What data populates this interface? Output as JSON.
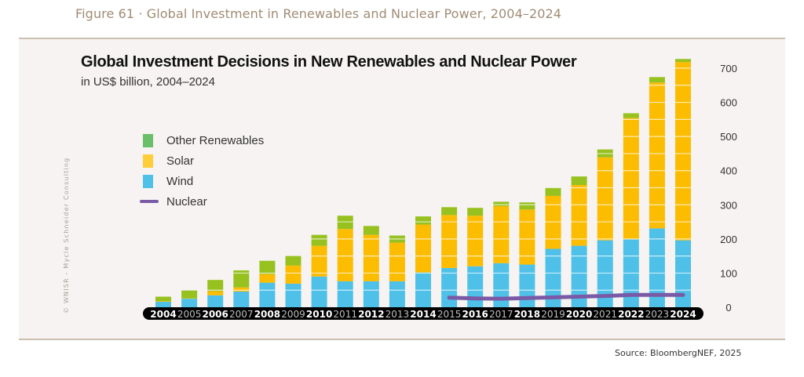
{
  "figure_caption": "Figure 61 · Global Investment in Renewables and Nuclear Power, 2004–2024",
  "copyright": "© WNISR - Mycle Schneider Consulting",
  "source": "Source: BloombergNEF, 2025",
  "colors": {
    "wind": "#4fc1e8",
    "solar": "#fcbc00",
    "other": "#97c11f",
    "other_legend": "#6abf69",
    "solar_legend": "#ffcd3a",
    "nuclear": "#7a5aa6",
    "axis_band": "#000000"
  },
  "chart_data": {
    "type": "bar",
    "stacked": true,
    "title": "Global Investment Decisions in New Renewables and Nuclear Power",
    "subtitle": "in US$ billion, 2004–2024",
    "xlabel": "",
    "ylabel": "",
    "ylim": [
      0,
      700
    ],
    "yticks": [
      0,
      100,
      200,
      300,
      400,
      500,
      600,
      700
    ],
    "y_axis_side": "right",
    "grid": true,
    "legend_position": "left",
    "categories": [
      "2004",
      "2005",
      "2006",
      "2007",
      "2008",
      "2009",
      "2010",
      "2011",
      "2012",
      "2013",
      "2014",
      "2015",
      "2016",
      "2017",
      "2018",
      "2019",
      "2020",
      "2021",
      "2022",
      "2023",
      "2024"
    ],
    "bold_categories": [
      "2004",
      "2006",
      "2008",
      "2010",
      "2012",
      "2014",
      "2016",
      "2018",
      "2020",
      "2022",
      "2024"
    ],
    "series": [
      {
        "name": "Wind",
        "key": "wind",
        "values": [
          16,
          25,
          35,
          46,
          72,
          69,
          90,
          76,
          76,
          76,
          102,
          115,
          120,
          129,
          125,
          171,
          180,
          196,
          199,
          231,
          196
        ]
      },
      {
        "name": "Solar",
        "key": "solar",
        "values": [
          2,
          1,
          12,
          12,
          25,
          53,
          90,
          153,
          136,
          113,
          140,
          155,
          148,
          167,
          161,
          155,
          178,
          243,
          355,
          427,
          522
        ]
      },
      {
        "name": "Other Renewables",
        "key": "other",
        "values": [
          13,
          23,
          33,
          50,
          39,
          28,
          32,
          39,
          26,
          21,
          24,
          23,
          23,
          13,
          21,
          25,
          25,
          23,
          14,
          16,
          9
        ]
      },
      {
        "name": "Nuclear",
        "key": "nuclear",
        "type": "line",
        "x_start": "2015",
        "values": [
          null,
          null,
          null,
          null,
          null,
          null,
          null,
          null,
          null,
          null,
          null,
          28,
          26,
          25,
          27,
          29,
          31,
          33,
          36,
          36,
          36
        ]
      }
    ]
  },
  "legend": [
    {
      "label": "Other Renewables",
      "key": "other_legend",
      "kind": "swatch"
    },
    {
      "label": "Solar",
      "key": "solar_legend",
      "kind": "swatch"
    },
    {
      "label": "Wind",
      "key": "wind",
      "kind": "swatch"
    },
    {
      "label": "Nuclear",
      "key": "nuclear",
      "kind": "line"
    }
  ]
}
